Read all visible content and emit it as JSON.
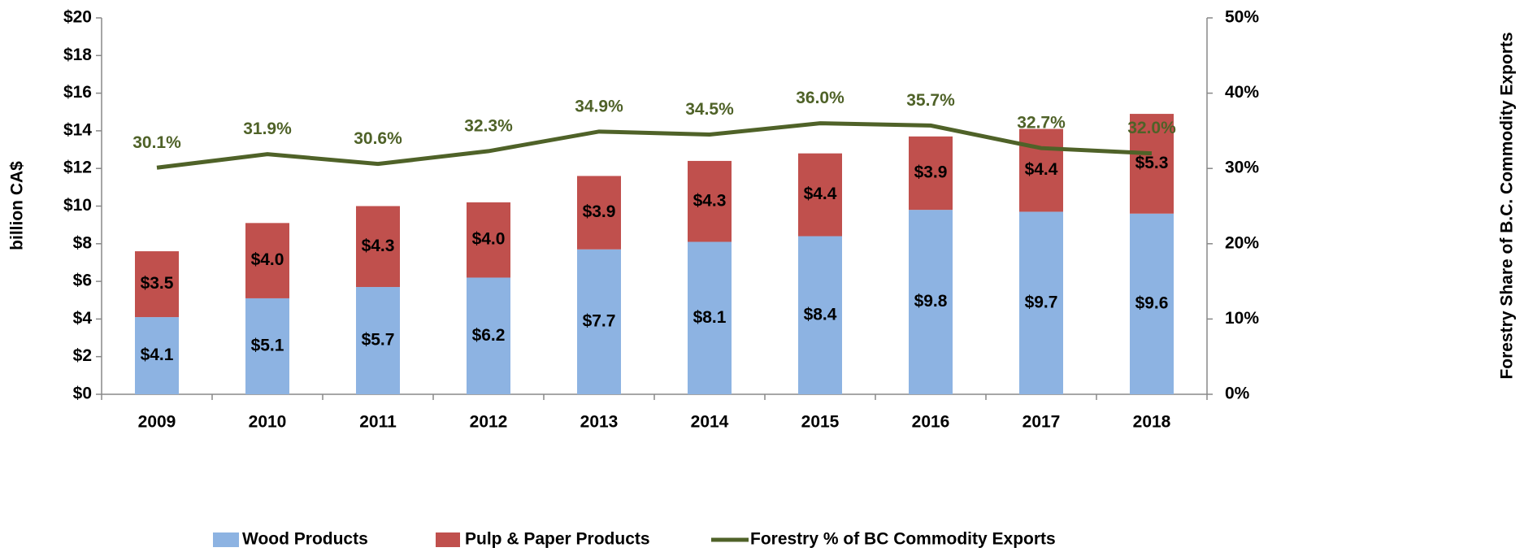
{
  "chart_data": {
    "type": "bar",
    "stacked": true,
    "y_label": "billion CA$",
    "y2_label": "Forestry Share of B.C. Commodity Exports",
    "categories": [
      "2009",
      "2010",
      "2011",
      "2012",
      "2013",
      "2014",
      "2015",
      "2016",
      "2017",
      "2018"
    ],
    "series": [
      {
        "name": "Wood Products",
        "type": "bar",
        "color": "#8db3e2",
        "values": [
          4.1,
          5.1,
          5.7,
          6.2,
          7.7,
          8.1,
          8.4,
          9.8,
          9.7,
          9.6
        ],
        "value_labels": [
          "$4.1",
          "$5.1",
          "$5.7",
          "$6.2",
          "$7.7",
          "$8.1",
          "$8.4",
          "$9.8",
          "$9.7",
          "$9.6"
        ]
      },
      {
        "name": "Pulp & Paper Products",
        "type": "bar",
        "color": "#c0504d",
        "values": [
          3.5,
          4.0,
          4.3,
          4.0,
          3.9,
          4.3,
          4.4,
          3.9,
          4.4,
          5.3
        ],
        "value_labels": [
          "$3.5",
          "$4.0",
          "$4.3",
          "$4.0",
          "$3.9",
          "$4.3",
          "$4.4",
          "$3.9",
          "$4.4",
          "$5.3"
        ]
      },
      {
        "name": "Forestry % of BC Commodity Exports",
        "type": "line",
        "axis": "y2",
        "color": "#4f6228",
        "values": [
          30.1,
          31.9,
          30.6,
          32.3,
          34.9,
          34.5,
          36.0,
          35.7,
          32.7,
          32.0
        ],
        "value_labels": [
          "30.1%",
          "31.9%",
          "30.6%",
          "32.3%",
          "34.9%",
          "34.5%",
          "36.0%",
          "35.7%",
          "32.7%",
          "32.0%"
        ]
      }
    ],
    "ylim": [
      0,
      20
    ],
    "yticks": [
      {
        "value": 0,
        "label": "$0"
      },
      {
        "value": 2,
        "label": "$2"
      },
      {
        "value": 4,
        "label": "$4"
      },
      {
        "value": 6,
        "label": "$6"
      },
      {
        "value": 8,
        "label": "$8"
      },
      {
        "value": 10,
        "label": "$10"
      },
      {
        "value": 12,
        "label": "$12"
      },
      {
        "value": 14,
        "label": "$14"
      },
      {
        "value": 16,
        "label": "$16"
      },
      {
        "value": 18,
        "label": "$18"
      },
      {
        "value": 20,
        "label": "$20"
      }
    ],
    "y2lim": [
      0,
      50
    ],
    "y2ticks": [
      {
        "value": 0,
        "label": "0%"
      },
      {
        "value": 10,
        "label": "10%"
      },
      {
        "value": 20,
        "label": "20%"
      },
      {
        "value": 30,
        "label": "30%"
      },
      {
        "value": 40,
        "label": "40%"
      },
      {
        "value": 50,
        "label": "50%"
      }
    ],
    "legend": "bottom",
    "grid": false
  }
}
